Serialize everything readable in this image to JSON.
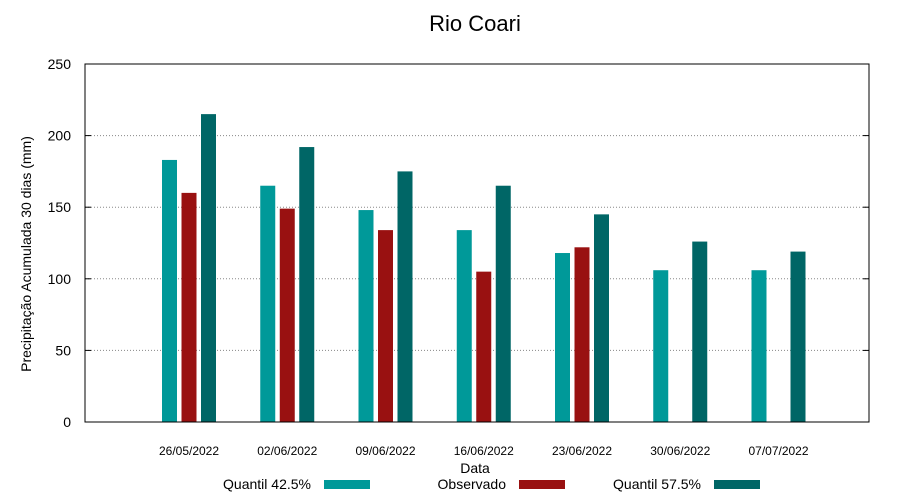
{
  "chart_data": {
    "type": "bar",
    "title": "Rio Coari",
    "xlabel": "Data",
    "ylabel": "Precipitação Acumulada 30 dias (mm)",
    "ylim": [
      0,
      250
    ],
    "yticks": [
      0,
      50,
      100,
      150,
      200,
      250
    ],
    "grid": "horizontal dotted",
    "legend_position": "bottom",
    "categories": [
      "26/05/2022",
      "02/06/2022",
      "09/06/2022",
      "16/06/2022",
      "23/06/2022",
      "30/06/2022",
      "07/07/2022"
    ],
    "series": [
      {
        "name": "Quantil 42.5%",
        "color": "#009999",
        "values": [
          183,
          165,
          148,
          134,
          118,
          106,
          106
        ]
      },
      {
        "name": "Observado",
        "color": "#991111",
        "values": [
          160,
          149,
          134,
          105,
          122,
          null,
          null
        ]
      },
      {
        "name": "Quantil 57.5%",
        "color": "#006666",
        "values": [
          215,
          192,
          175,
          165,
          145,
          126,
          119
        ]
      }
    ]
  }
}
